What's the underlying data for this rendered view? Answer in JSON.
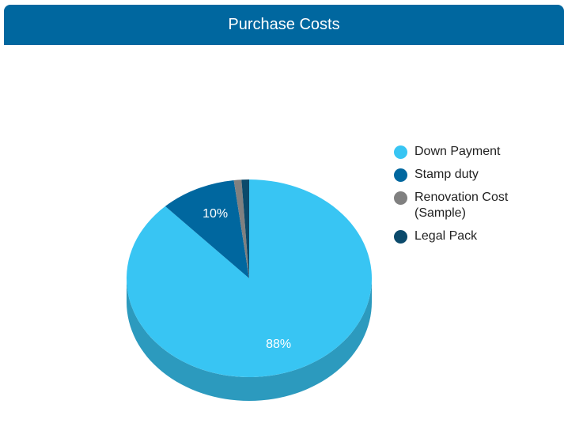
{
  "chart_data": {
    "type": "pie3d",
    "title": "Purchase Costs",
    "categories": [
      "Down Payment",
      "Stamp duty",
      "Renovation Cost (Sample)",
      "Legal Pack"
    ],
    "values": [
      88,
      10,
      1,
      1
    ],
    "value_labels": [
      "88%",
      "10%",
      null,
      null
    ],
    "colors": [
      "#38c5f3",
      "#00679f",
      "#808080",
      "#0b4a6b"
    ],
    "legend": "right"
  }
}
